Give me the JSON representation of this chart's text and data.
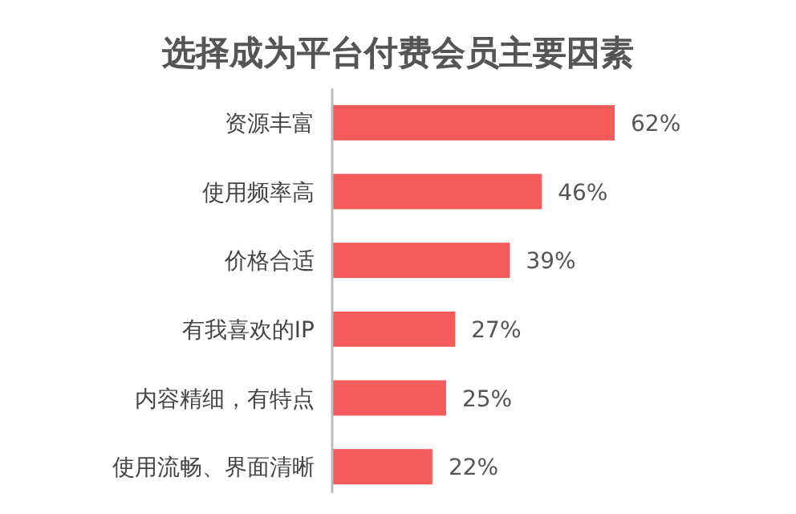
{
  "chart_data": {
    "type": "bar",
    "orientation": "horizontal",
    "title": "选择成为平台付费会员主要因素",
    "categories": [
      "资源丰富",
      "使用频率高",
      "价格合适",
      "有我喜欢的IP",
      "内容精细，有特点",
      "使用流畅、界面清晰"
    ],
    "values": [
      62,
      46,
      39,
      27,
      25,
      22
    ],
    "color": "#f65b5b",
    "value_labels": [
      "62%",
      "46%",
      "39%",
      "27%",
      "25%",
      "22%"
    ]
  }
}
